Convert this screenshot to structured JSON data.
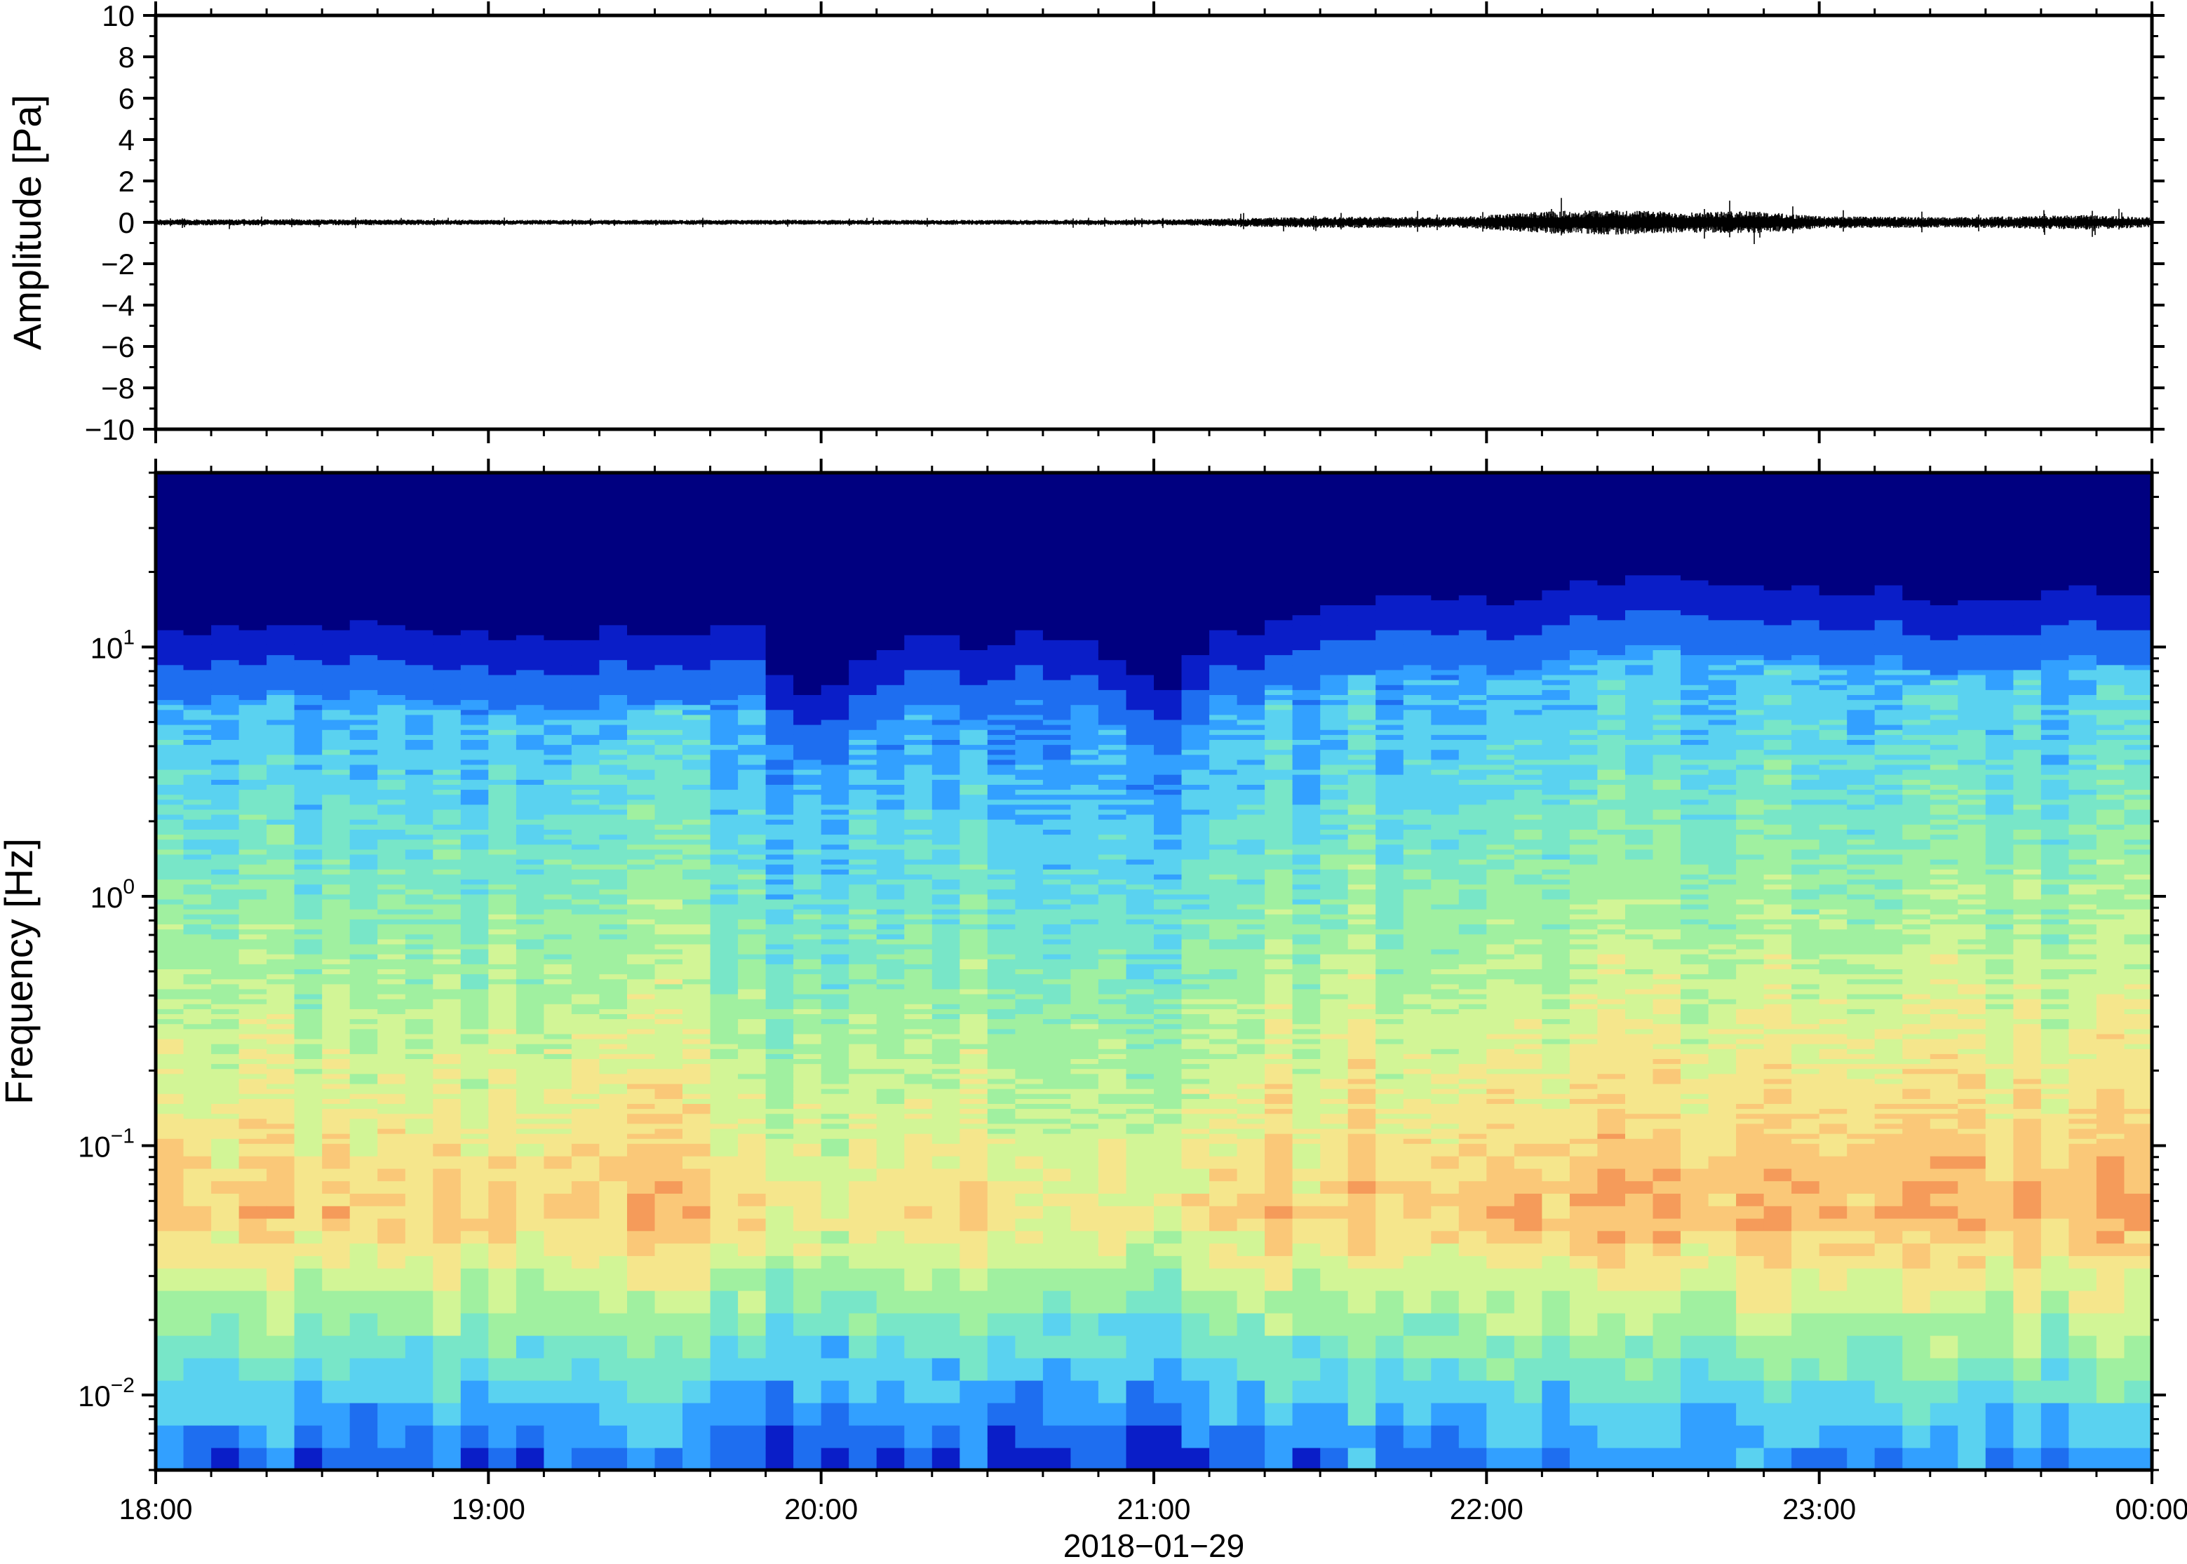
{
  "chart_data": [
    {
      "type": "line",
      "panel": "waveform",
      "ylabel": "Amplitude [Pa]",
      "ylim": [
        -10,
        10
      ],
      "yticks": [
        "10",
        "8",
        "6",
        "4",
        "2",
        "0",
        "−2",
        "−4",
        "−6",
        "−8",
        "−10"
      ],
      "ytick_values": [
        10,
        8,
        6,
        4,
        2,
        0,
        -2,
        -4,
        -6,
        -8,
        -10
      ],
      "xlim": [
        "2018-01-29 18:00",
        "2018-01-30 00:00"
      ],
      "line_color": "#000000",
      "envelope": {
        "t_hours": [
          0,
          0.5,
          1,
          1.5,
          2,
          2.5,
          3,
          3.3,
          3.6,
          3.9,
          4.2,
          4.4,
          4.6,
          4.8,
          5.0,
          5.4,
          5.8,
          6.0
        ],
        "half_amplitude_pa": [
          0.15,
          0.15,
          0.12,
          0.12,
          0.12,
          0.12,
          0.13,
          0.22,
          0.28,
          0.25,
          0.55,
          0.6,
          0.5,
          0.55,
          0.3,
          0.25,
          0.35,
          0.25
        ]
      }
    },
    {
      "type": "heatmap",
      "panel": "spectrogram",
      "ylabel": "Frequency [Hz]",
      "yscale": "log",
      "ylim": [
        0.005,
        50
      ],
      "yticks": [
        {
          "value": 10,
          "base": "10",
          "exp": "1"
        },
        {
          "value": 1,
          "base": "10",
          "exp": "0"
        },
        {
          "value": 0.1,
          "base": "10",
          "exp": "−1"
        },
        {
          "value": 0.01,
          "base": "10",
          "exp": "−2"
        }
      ],
      "xlabel": "2018−01−29",
      "xticks": [
        "18:00",
        "19:00",
        "20:00",
        "21:00",
        "22:00",
        "23:00",
        "00:00"
      ],
      "colormap": [
        "#000080",
        "#0a1ec8",
        "#1e6ef0",
        "#32a0ff",
        "#5ad2f0",
        "#78e6c8",
        "#a0f0a0",
        "#d2f596",
        "#f5e68c",
        "#fac878",
        "#f59b5a",
        "#e6503c"
      ],
      "upper_cutoff_hz": {
        "t_hours": [
          0,
          0.5,
          1.0,
          1.5,
          1.8,
          1.9,
          2.0,
          2.2,
          2.5,
          2.8,
          3.0,
          3.2,
          3.5,
          4.2,
          4.5,
          5.0,
          5.5,
          5.8,
          6.0
        ],
        "hz": [
          13,
          14,
          12,
          13,
          14,
          8,
          7,
          11,
          12,
          12,
          7,
          13,
          15,
          19,
          21,
          20,
          16,
          22,
          15
        ]
      },
      "energy_trend": {
        "t_hours": [
          0,
          0.5,
          1.0,
          1.5,
          1.8,
          1.9,
          2.0,
          2.2,
          2.5,
          2.8,
          3.0,
          3.2,
          3.5,
          4.2,
          4.5,
          4.8,
          5.0,
          5.5,
          5.8,
          6.0
        ],
        "relative_level": [
          0.5,
          0.5,
          0.5,
          0.5,
          0.3,
          -0.4,
          -0.2,
          0.2,
          0.3,
          0.1,
          -0.3,
          0.5,
          0.6,
          0.9,
          1.0,
          1.0,
          0.8,
          0.7,
          0.9,
          0.7
        ]
      }
    }
  ]
}
